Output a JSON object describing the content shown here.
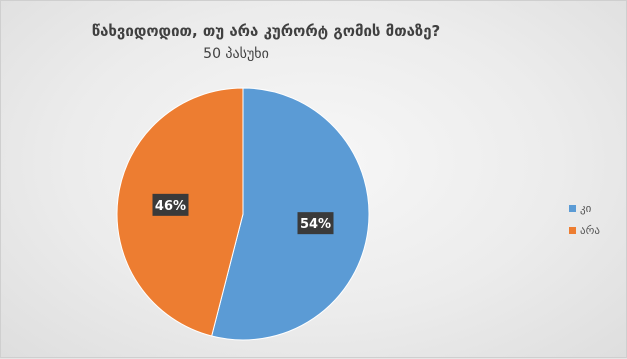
{
  "chart_data": {
    "type": "pie",
    "title": "წახვიდოდით, თუ არა კურორტ გომის მთაზე?",
    "subtitle": "50 პასუხი",
    "categories": [
      "კი",
      "არა"
    ],
    "values": [
      54,
      46
    ],
    "data_labels": [
      "54%",
      "46%"
    ],
    "colors": [
      "#5b9bd5",
      "#ed7d31"
    ],
    "legend_position": "right"
  }
}
